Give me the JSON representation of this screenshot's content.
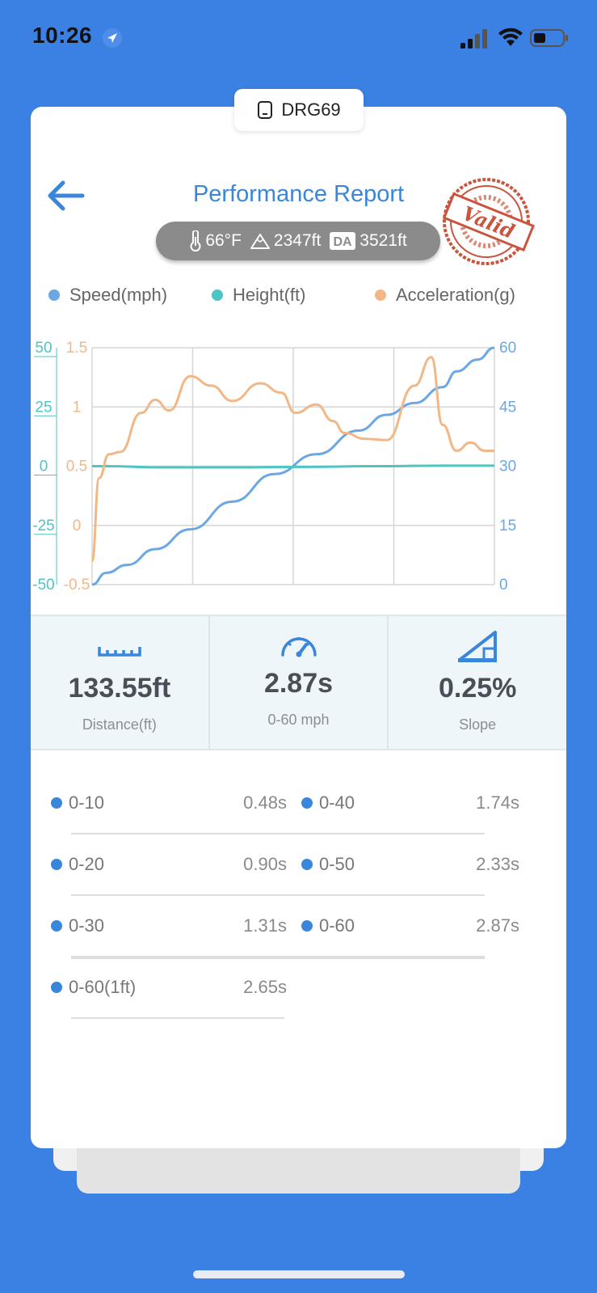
{
  "status_bar": {
    "time": "10:26"
  },
  "device": {
    "name": "DRG69"
  },
  "header": {
    "title": "Performance Report",
    "stamp_text": "Valid"
  },
  "conditions": {
    "temperature": "66°F",
    "altitude": "2347ft",
    "da_label": "DA",
    "density_altitude": "3521ft"
  },
  "legend": [
    {
      "label": "Speed(mph)",
      "color": "#6aa7e4"
    },
    {
      "label": "Height(ft)",
      "color": "#4fc4c4"
    },
    {
      "label": "Acceleration(g)",
      "color": "#f2b786"
    }
  ],
  "chart_data": {
    "type": "line",
    "x_range": [
      0,
      2.87
    ],
    "axes": {
      "height": {
        "ticks": [
          "50",
          "25",
          "0",
          "-25",
          "-50"
        ],
        "ylim": [
          -50,
          50
        ],
        "color": "#4fc4c4"
      },
      "acceleration": {
        "ticks": [
          "1.5",
          "1",
          "0.5",
          "0",
          "-0.5"
        ],
        "ylim": [
          -0.5,
          1.5
        ],
        "color": "#f2b786"
      },
      "speed": {
        "ticks": [
          "60",
          "45",
          "30",
          "15",
          "0"
        ],
        "ylim": [
          0,
          60
        ],
        "color": "#6aa7e4"
      }
    },
    "grid": true,
    "series": [
      {
        "name": "Speed(mph)",
        "axis": "speed",
        "color": "#6aa7e4",
        "x": [
          0,
          0.1,
          0.25,
          0.45,
          0.7,
          1.0,
          1.3,
          1.6,
          1.9,
          2.1,
          2.3,
          2.5,
          2.6,
          2.75,
          2.87
        ],
        "y": [
          0,
          3,
          5,
          9,
          14,
          21,
          28,
          33,
          39,
          43,
          46,
          50,
          54,
          57,
          60
        ]
      },
      {
        "name": "Height(ft)",
        "axis": "height",
        "color": "#4fc4c4",
        "x": [
          0,
          0.1,
          0.5,
          1.0,
          1.5,
          2.0,
          2.5,
          2.87
        ],
        "y": [
          0,
          0,
          -0.5,
          -0.5,
          -0.3,
          0,
          0.2,
          0.2
        ]
      },
      {
        "name": "Acceleration(g)",
        "axis": "acceleration",
        "color": "#f2b786",
        "x": [
          0,
          0.05,
          0.12,
          0.2,
          0.35,
          0.45,
          0.55,
          0.7,
          0.85,
          1.0,
          1.2,
          1.35,
          1.45,
          1.6,
          1.72,
          1.8,
          1.95,
          2.1,
          2.3,
          2.42,
          2.5,
          2.6,
          2.7,
          2.8,
          2.87
        ],
        "y": [
          -0.3,
          0.4,
          0.6,
          0.62,
          0.95,
          1.06,
          0.97,
          1.26,
          1.18,
          1.05,
          1.2,
          1.12,
          0.95,
          1.02,
          0.88,
          0.78,
          0.73,
          0.72,
          1.18,
          1.42,
          0.85,
          0.63,
          0.7,
          0.63,
          0.63
        ]
      }
    ]
  },
  "stats": {
    "distance": {
      "value": "133.55ft",
      "label": "Distance(ft)"
    },
    "zero_sixty": {
      "value": "2.87s",
      "label": "0-60 mph"
    },
    "slope": {
      "value": "0.25%",
      "label": "Slope"
    }
  },
  "splits": [
    {
      "name": "0-10",
      "time": "0.48s"
    },
    {
      "name": "0-40",
      "time": "1.74s"
    },
    {
      "name": "0-20",
      "time": "0.90s"
    },
    {
      "name": "0-50",
      "time": "2.33s"
    },
    {
      "name": "0-30",
      "time": "1.31s"
    },
    {
      "name": "0-60",
      "time": "2.87s"
    },
    {
      "name": "0-60(1ft)",
      "time": "2.65s"
    }
  ]
}
